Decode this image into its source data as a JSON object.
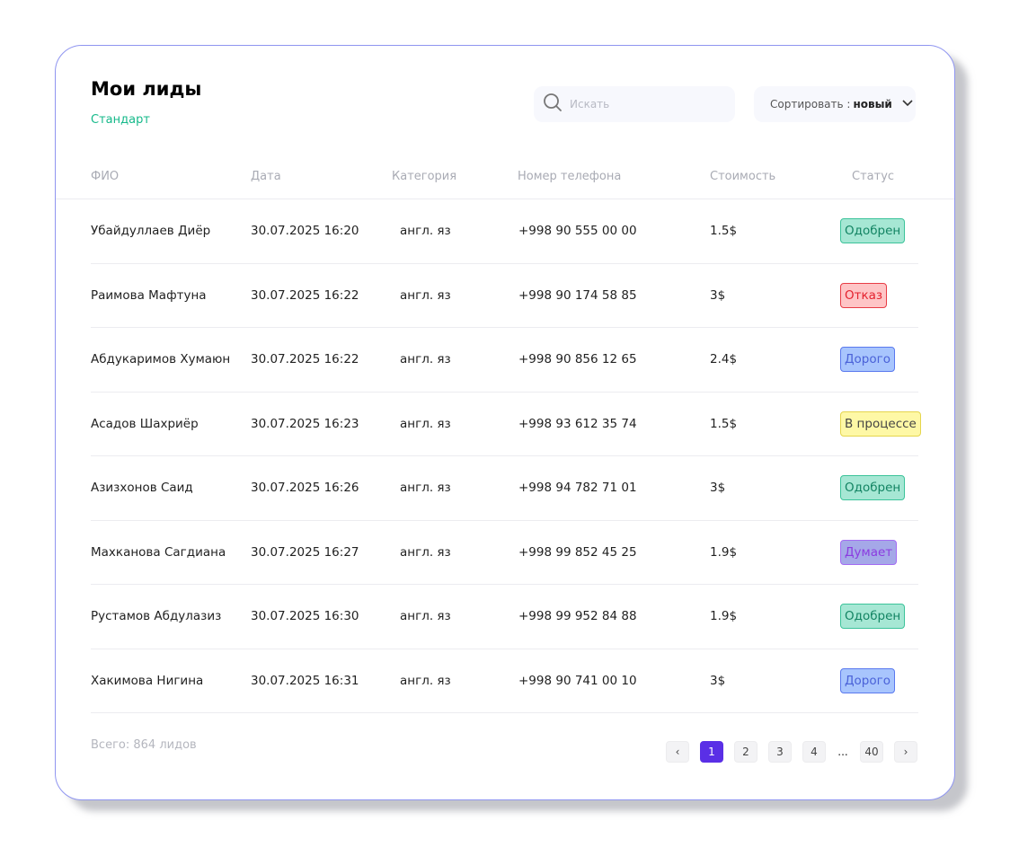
{
  "header": {
    "title": "Мои лиды",
    "subtitle": "Стандарт"
  },
  "search": {
    "placeholder": "Искать",
    "value": ""
  },
  "sort": {
    "label": "Сортировать :",
    "value": "новый"
  },
  "columns": [
    "ФИО",
    "Дата",
    "Категория",
    "Номер телефона",
    "Стоимость",
    "Статус"
  ],
  "status_colors": {
    "Одобрен": {
      "bg": "#a6e7d4",
      "border": "#3cc39a",
      "text": "#138463"
    },
    "Отказ": {
      "bg": "#fec5c6",
      "border": "#e83c45",
      "text": "#e4222e"
    },
    "Дорого": {
      "bg": "#a8c5fd",
      "border": "#5a79ee",
      "text": "#4a62d8"
    },
    "В процессе": {
      "bg": "#fef8a6",
      "border": "#e5d54d",
      "text": "#444"
    },
    "Думает": {
      "bg": "#a5a8e8",
      "border": "#a46cf3",
      "text": "#8b3be0"
    }
  },
  "rows": [
    {
      "name": "Убайдуллаев Диёр",
      "date": "30.07.2025 16:20",
      "category": "англ. яз",
      "phone": "+998 90 555 00 00",
      "price": "1.5$",
      "status": "Одобрен"
    },
    {
      "name": "Раимова Мафтуна",
      "date": "30.07.2025 16:22",
      "category": "англ. яз",
      "phone": "+998 90 174 58 85",
      "price": "3$",
      "status": "Отказ"
    },
    {
      "name": "Абдукаримов Хумаюн",
      "date": "30.07.2025 16:22",
      "category": "англ. яз",
      "phone": "+998 90 856 12 65",
      "price": "2.4$",
      "status": "Дорого"
    },
    {
      "name": "Асадов Шахриёр",
      "date": "30.07.2025 16:23",
      "category": "англ. яз",
      "phone": "+998 93 612 35 74",
      "price": "1.5$",
      "status": "В процессе"
    },
    {
      "name": "Азизхонов Саид",
      "date": "30.07.2025 16:26",
      "category": "англ. яз",
      "phone": "+998 94 782 71 01",
      "price": "3$",
      "status": "Одобрен"
    },
    {
      "name": "Махканова Сагдиана",
      "date": "30.07.2025 16:27",
      "category": "англ. яз",
      "phone": "+998 99 852 45 25",
      "price": "1.9$",
      "status": "Думает"
    },
    {
      "name": "Рустамов Абдулазиз",
      "date": "30.07.2025 16:30",
      "category": "англ. яз",
      "phone": "+998 99 952 84 88",
      "price": "1.9$",
      "status": "Одобрен"
    },
    {
      "name": "Хакимова Нигина",
      "date": "30.07.2025 16:31",
      "category": "англ. яз",
      "phone": "+998 90 741 00 10",
      "price": "3$",
      "status": "Дорого"
    }
  ],
  "footer": {
    "total_label": "Всего:",
    "total_count": "864",
    "total_suffix": "лидов"
  },
  "pagination": {
    "prev": "‹",
    "pages": [
      "1",
      "2",
      "3",
      "4"
    ],
    "ellipsis": "...",
    "last": "40",
    "next": "›",
    "current": "1"
  }
}
